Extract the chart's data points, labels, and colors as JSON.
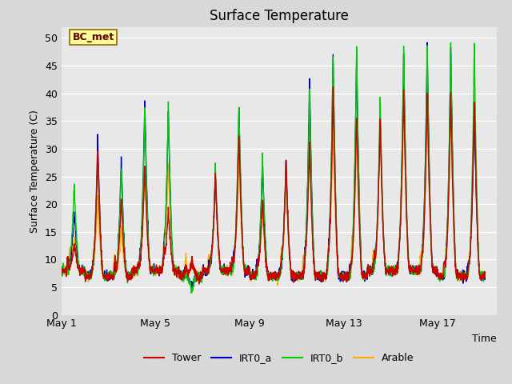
{
  "title": "Surface Temperature",
  "ylabel": "Surface Temperature (C)",
  "xlabel": "Time",
  "ylim": [
    0,
    52
  ],
  "yticks": [
    0,
    5,
    10,
    15,
    20,
    25,
    30,
    35,
    40,
    45,
    50
  ],
  "xtick_labels": [
    "May 1",
    "May 5",
    "May 9",
    "May 13",
    "May 17"
  ],
  "xtick_positions": [
    0,
    4,
    8,
    12,
    16
  ],
  "xlim": [
    0,
    18.5
  ],
  "n_days": 18,
  "series_colors": {
    "Tower": "#cc0000",
    "IRT0_a": "#0000cc",
    "IRT0_b": "#00cc00",
    "Arable": "#ffaa00"
  },
  "annotation_text": "BC_met",
  "annotation_box_facecolor": "#ffff99",
  "annotation_box_edgecolor": "#996600",
  "annotation_text_color": "#660000",
  "fig_facecolor": "#d8d8d8",
  "ax_facecolor": "#e8e8e8",
  "grid_color": "#ffffff",
  "title_fontsize": 12,
  "label_fontsize": 9,
  "tick_fontsize": 9,
  "legend_fontsize": 9,
  "linewidth": 1.0,
  "night_temps_base": [
    8,
    7,
    7,
    8,
    8,
    7,
    8,
    8,
    7,
    7,
    7,
    7,
    7,
    8,
    8,
    8,
    7,
    7
  ],
  "day_peaks_irt0b": [
    24,
    29,
    27,
    37,
    38,
    4,
    27,
    38,
    29,
    27,
    41,
    47,
    48,
    39,
    49,
    48,
    49,
    49
  ],
  "day_peaks_irt0a": [
    19,
    32,
    28,
    39,
    37,
    5,
    25,
    37,
    28,
    28,
    43,
    47,
    47,
    37,
    47,
    49,
    49,
    38
  ],
  "day_peaks_tower": [
    13,
    30,
    21,
    27,
    19,
    10,
    26,
    33,
    21,
    28,
    31,
    41,
    36,
    35,
    41,
    40,
    40,
    39
  ],
  "day_peaks_arable": [
    14,
    21,
    16,
    27,
    28,
    10,
    25,
    29,
    21,
    25,
    35,
    35,
    35,
    35,
    40,
    40,
    40,
    40
  ]
}
